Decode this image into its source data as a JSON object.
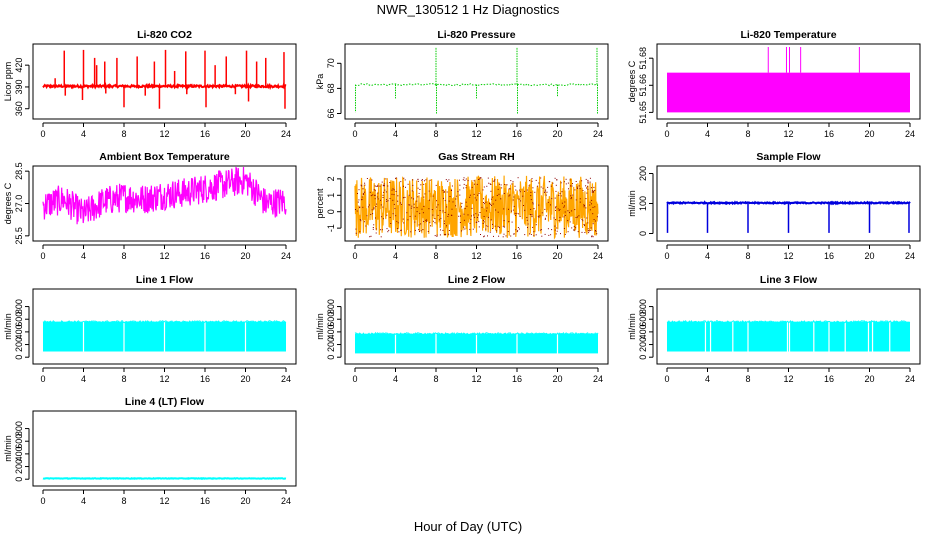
{
  "figure": {
    "title": "NWR_130512  1 Hz Diagnostics",
    "xlabel": "Hour of Day (UTC)"
  },
  "chart_data": [
    {
      "type": "line",
      "title": "Li-820 CO2",
      "ylabel": "Licor ppm",
      "color": "#ff0000",
      "xlim": [
        0,
        24
      ],
      "ylim": [
        350,
        445
      ],
      "xticks": [
        "0",
        "4",
        "8",
        "12",
        "16",
        "20",
        "24"
      ],
      "yticks": [
        {
          "v": 360,
          "l": "360"
        },
        {
          "v": 390,
          "l": "390"
        },
        {
          "v": 420,
          "l": "420"
        }
      ],
      "style": "dense",
      "baseline": 391,
      "noise": 1.5,
      "spikes": [
        {
          "x": 1.2,
          "y": 402
        },
        {
          "x": 2.1,
          "y": 440
        },
        {
          "x": 2.2,
          "y": 378
        },
        {
          "x": 4.0,
          "y": 441
        },
        {
          "x": 3.9,
          "y": 372
        },
        {
          "x": 5.1,
          "y": 430
        },
        {
          "x": 5.3,
          "y": 420
        },
        {
          "x": 6.1,
          "y": 425
        },
        {
          "x": 6.2,
          "y": 381
        },
        {
          "x": 7.3,
          "y": 430
        },
        {
          "x": 8.0,
          "y": 362
        },
        {
          "x": 9.3,
          "y": 432
        },
        {
          "x": 10.1,
          "y": 378
        },
        {
          "x": 11.0,
          "y": 425
        },
        {
          "x": 11.5,
          "y": 360
        },
        {
          "x": 12.1,
          "y": 441
        },
        {
          "x": 13.0,
          "y": 412
        },
        {
          "x": 14.1,
          "y": 439
        },
        {
          "x": 14.2,
          "y": 380
        },
        {
          "x": 16.0,
          "y": 440
        },
        {
          "x": 16.1,
          "y": 362
        },
        {
          "x": 17.0,
          "y": 420
        },
        {
          "x": 18.1,
          "y": 432
        },
        {
          "x": 19.0,
          "y": 380
        },
        {
          "x": 20.1,
          "y": 440
        },
        {
          "x": 20.3,
          "y": 370
        },
        {
          "x": 21.1,
          "y": 425
        },
        {
          "x": 22.0,
          "y": 430
        },
        {
          "x": 23.8,
          "y": 438
        },
        {
          "x": 23.9,
          "y": 360
        }
      ]
    },
    {
      "type": "line",
      "title": "Li-820 Pressure",
      "ylabel": "kPa",
      "color": "#00cc00",
      "xlim": [
        0,
        24
      ],
      "ylim": [
        65.8,
        71.3
      ],
      "xticks": [
        "0",
        "4",
        "8",
        "12",
        "16",
        "20",
        "24"
      ],
      "yticks": [
        {
          "v": 66,
          "l": "66"
        },
        {
          "v": 68,
          "l": "68"
        },
        {
          "v": 70,
          "l": "70"
        }
      ],
      "style": "sparse",
      "baseline": 68.3,
      "noise": 0.08,
      "spikes": [
        {
          "x": 0.05,
          "y": 66.1
        },
        {
          "x": 4.0,
          "y": 67.2
        },
        {
          "x": 8.0,
          "y": 71.3
        },
        {
          "x": 8.05,
          "y": 66.0
        },
        {
          "x": 12.0,
          "y": 67.2
        },
        {
          "x": 16.0,
          "y": 71.3
        },
        {
          "x": 16.05,
          "y": 66.0
        },
        {
          "x": 20.0,
          "y": 67.3
        },
        {
          "x": 23.9,
          "y": 71.3
        },
        {
          "x": 23.95,
          "y": 66.0
        }
      ]
    },
    {
      "type": "area",
      "title": "Li-820 Temperature",
      "ylabel": "degrees C",
      "color": "#ff00ff",
      "xlim": [
        0,
        24
      ],
      "ylim": [
        51.648,
        51.6862
      ],
      "xticks": [
        "0",
        "4",
        "8",
        "12",
        "16",
        "20",
        "24"
      ],
      "yticks": [
        {
          "v": 51.65,
          "l": "51.65"
        },
        {
          "v": 51.665,
          "l": "51.66"
        },
        {
          "v": 51.68,
          "l": "51.68"
        }
      ],
      "style": "band",
      "band_low": 51.65,
      "band_high": 51.672,
      "spikes": [
        {
          "x": 10.0,
          "y": 51.6862
        },
        {
          "x": 11.8,
          "y": 51.6862
        },
        {
          "x": 12.1,
          "y": 51.6862
        },
        {
          "x": 13.2,
          "y": 51.6862
        },
        {
          "x": 19.0,
          "y": 51.6862
        }
      ]
    },
    {
      "type": "line",
      "title": "Ambient Box Temperature",
      "ylabel": "degrees C",
      "color": "#ff00ff",
      "xlim": [
        0,
        24
      ],
      "ylim": [
        25.4,
        28.6
      ],
      "xticks": [
        "0",
        "4",
        "8",
        "12",
        "16",
        "20",
        "24"
      ],
      "yticks": [
        {
          "v": 25.5,
          "l": "25.5"
        },
        {
          "v": 27.0,
          "l": "27.0"
        },
        {
          "v": 28.5,
          "l": "28.5"
        }
      ],
      "style": "noisyband",
      "trend": [
        {
          "x": 0,
          "y": 26.9
        },
        {
          "x": 2,
          "y": 27.2
        },
        {
          "x": 4,
          "y": 26.5
        },
        {
          "x": 6,
          "y": 27.1
        },
        {
          "x": 8,
          "y": 27.3
        },
        {
          "x": 10,
          "y": 27.2
        },
        {
          "x": 12,
          "y": 27.4
        },
        {
          "x": 14,
          "y": 27.5
        },
        {
          "x": 16,
          "y": 27.7
        },
        {
          "x": 18,
          "y": 27.9
        },
        {
          "x": 20,
          "y": 28.1
        },
        {
          "x": 22,
          "y": 27.0
        },
        {
          "x": 24,
          "y": 27.1
        }
      ],
      "halfwidth": 0.7
    },
    {
      "type": "line",
      "title": "Gas Stream RH",
      "ylabel": "percent",
      "color": "#ffa500",
      "color2": "#8b0000",
      "xlim": [
        0,
        24
      ],
      "ylim": [
        -1.6,
        2.6
      ],
      "xticks": [
        "0",
        "4",
        "8",
        "12",
        "16",
        "20",
        "24"
      ],
      "yticks": [
        {
          "v": -1,
          "l": "-1"
        },
        {
          "v": 0,
          "l": "0"
        },
        {
          "v": 1,
          "l": "1"
        },
        {
          "v": 2,
          "l": "2"
        }
      ],
      "style": "noisyband",
      "trend": [
        {
          "x": 0,
          "y": 0.3
        },
        {
          "x": 24,
          "y": 0.3
        }
      ],
      "halfwidth": 1.9
    },
    {
      "type": "line",
      "title": "Sample Flow",
      "ylabel": "ml/min",
      "color": "#0000dd",
      "xlim": [
        0,
        24
      ],
      "ylim": [
        -15,
        215
      ],
      "xticks": [
        "0",
        "4",
        "8",
        "12",
        "16",
        "20",
        "24"
      ],
      "yticks": [
        {
          "v": 0,
          "l": "0"
        },
        {
          "v": 100,
          "l": "100"
        },
        {
          "v": 200,
          "l": "200"
        }
      ],
      "style": "dense",
      "baseline": 102,
      "noise": 2,
      "spikes": [
        {
          "x": 0.05,
          "y": 2
        },
        {
          "x": 4.0,
          "y": 2
        },
        {
          "x": 8.0,
          "y": 2
        },
        {
          "x": 12.0,
          "y": 2
        },
        {
          "x": 16.0,
          "y": 2
        },
        {
          "x": 20.0,
          "y": 2
        },
        {
          "x": 23.9,
          "y": 2
        }
      ]
    },
    {
      "type": "area",
      "title": "Line 1 Flow",
      "ylabel": "ml/min",
      "color": "#00ffff",
      "xlim": [
        0,
        24
      ],
      "ylim": [
        -60,
        1030
      ],
      "xticks": [
        "0",
        "4",
        "8",
        "12",
        "16",
        "20",
        "24"
      ],
      "yticks": [
        {
          "v": 0,
          "l": "0"
        },
        {
          "v": 200,
          "l": "200"
        },
        {
          "v": 400,
          "l": "400"
        },
        {
          "v": 600,
          "l": "600"
        },
        {
          "v": 800,
          "l": "800"
        }
      ],
      "style": "band",
      "band_low": 90,
      "band_high": 560,
      "gaps": [
        4.0,
        8.0,
        12.0,
        16.0,
        20.0
      ]
    },
    {
      "type": "area",
      "title": "Line 2 Flow",
      "ylabel": "ml/min",
      "color": "#00ffff",
      "xlim": [
        0,
        24
      ],
      "ylim": [
        -60,
        1030
      ],
      "xticks": [
        "0",
        "4",
        "8",
        "12",
        "16",
        "20",
        "24"
      ],
      "yticks": [
        {
          "v": 0,
          "l": "0"
        },
        {
          "v": 200,
          "l": "200"
        },
        {
          "v": 400,
          "l": "400"
        },
        {
          "v": 600,
          "l": "600"
        },
        {
          "v": 800,
          "l": "800"
        }
      ],
      "style": "band",
      "band_low": 60,
      "band_high": 370,
      "gaps": [
        4.0,
        8.0,
        12.0,
        16.0,
        20.0
      ]
    },
    {
      "type": "area",
      "title": "Line 3 Flow",
      "ylabel": "ml/min",
      "color": "#00ffff",
      "xlim": [
        0,
        24
      ],
      "ylim": [
        -60,
        1030
      ],
      "xticks": [
        "0",
        "4",
        "8",
        "12",
        "16",
        "20",
        "24"
      ],
      "yticks": [
        {
          "v": 0,
          "l": "0"
        },
        {
          "v": 200,
          "l": "200"
        },
        {
          "v": 400,
          "l": "400"
        },
        {
          "v": 600,
          "l": "600"
        },
        {
          "v": 800,
          "l": "800"
        }
      ],
      "style": "band",
      "band_low": 90,
      "band_high": 560,
      "gaps": [
        3.8,
        4.3,
        6.5,
        8.0,
        11.9,
        12.1,
        14.5,
        16.0,
        17.6,
        19.9,
        20.3,
        22.0
      ]
    },
    {
      "type": "line",
      "title": "Line 4 (LT) Flow",
      "ylabel": "ml/min",
      "color": "#00ffff",
      "xlim": [
        0,
        24
      ],
      "ylim": [
        -60,
        1030
      ],
      "xticks": [
        "0",
        "4",
        "8",
        "12",
        "16",
        "20",
        "24"
      ],
      "yticks": [
        {
          "v": 0,
          "l": "0"
        },
        {
          "v": 200,
          "l": "200"
        },
        {
          "v": 400,
          "l": "400"
        },
        {
          "v": 600,
          "l": "600"
        },
        {
          "v": 800,
          "l": "800"
        }
      ],
      "style": "dense",
      "baseline": 12,
      "noise": 4,
      "spikes": []
    }
  ]
}
